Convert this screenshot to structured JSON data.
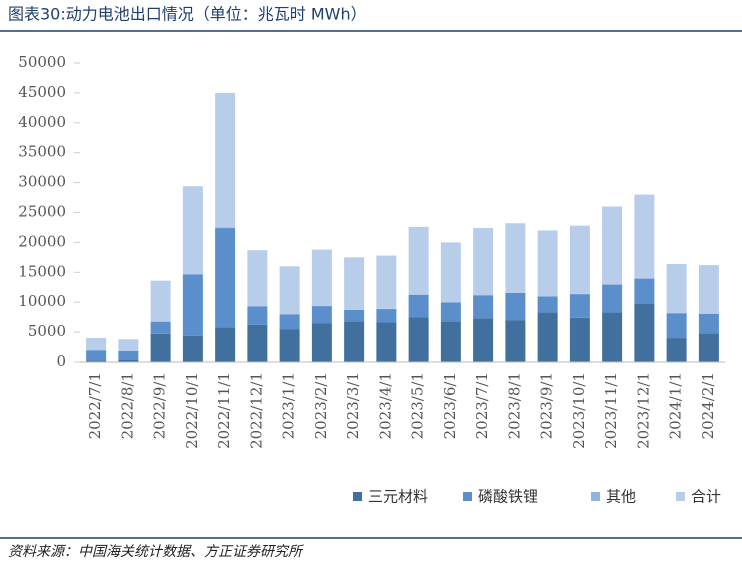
{
  "chart_data": {
    "type": "stacked_bar",
    "title": "图表30:动力电池出口情况（单位：兆瓦时 MWh）",
    "source": "资料来源：中国海关统计数据、方正证券研究所",
    "categories": [
      "2022/7/1",
      "2022/8/1",
      "2022/9/1",
      "2022/10/1",
      "2022/11/1",
      "2022/12/1",
      "2023/1/1",
      "2023/2/1",
      "2023/3/1",
      "2023/4/1",
      "2023/5/1",
      "2023/6/1",
      "2023/7/1",
      "2023/8/1",
      "2023/9/1",
      "2023/10/1",
      "2023/11/1",
      "2023/12/1",
      "2024/1/1",
      "2024/2/1"
    ],
    "series": [
      {
        "name": "三元材料",
        "color": "#41709f",
        "values": [
          300,
          400,
          4700,
          4400,
          5800,
          6200,
          5500,
          6500,
          6800,
          6600,
          7500,
          6800,
          7300,
          7000,
          8300,
          7400,
          8300,
          9700,
          4000,
          4800
        ]
      },
      {
        "name": "磷酸铁锂",
        "color": "#5a8fcc",
        "values": [
          1650,
          1450,
          2050,
          10250,
          16600,
          3100,
          2450,
          2850,
          1900,
          2250,
          3750,
          3150,
          3850,
          4550,
          2650,
          3950,
          4650,
          4250,
          4150,
          3250
        ]
      },
      {
        "name": "其他",
        "color": "#8fb4e0",
        "values": [
          50,
          50,
          50,
          50,
          100,
          50,
          50,
          50,
          50,
          50,
          50,
          50,
          50,
          50,
          50,
          50,
          50,
          50,
          50,
          50
        ]
      },
      {
        "name": "合计",
        "color": "#b8cde9",
        "values": [
          2000,
          1900,
          6800,
          14700,
          22500,
          9350,
          8000,
          9400,
          8750,
          8900,
          11300,
          10000,
          11200,
          11600,
          11000,
          11400,
          13000,
          14000,
          8200,
          8100
        ]
      }
    ],
    "ylim": [
      0,
      50000
    ],
    "yticks": [
      0,
      5000,
      10000,
      15000,
      20000,
      25000,
      30000,
      35000,
      40000,
      45000,
      50000
    ],
    "legend": "bottom-right"
  }
}
